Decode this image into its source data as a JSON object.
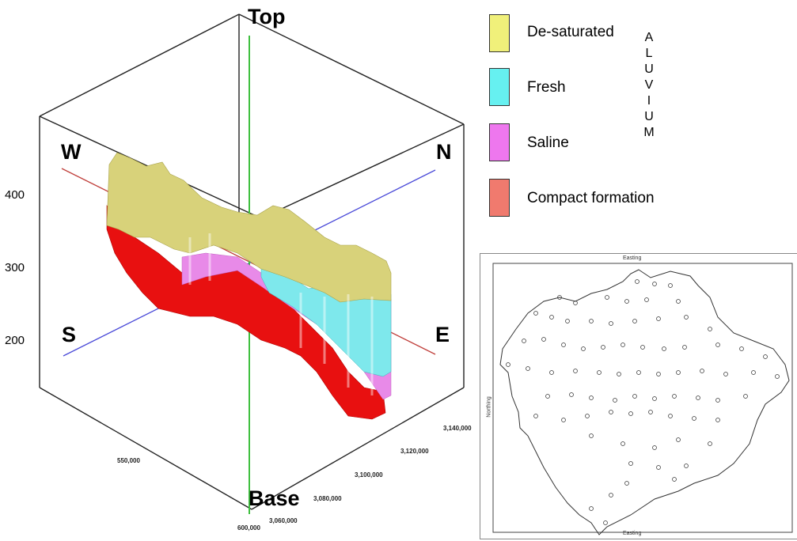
{
  "block": {
    "top_label": "Top",
    "base_label": "Base",
    "compass": {
      "w": "W",
      "n": "N",
      "s": "S",
      "e": "E"
    },
    "y_ticks": [
      "400",
      "300",
      "200"
    ],
    "easting_ticks": [
      "550,000",
      "600,000"
    ],
    "northing_ticks": [
      "3,140,000",
      "3,120,000",
      "3,100,000",
      "3,080,000",
      "3,060,000"
    ]
  },
  "legend": {
    "items": [
      {
        "label": "De-saturated",
        "color": "#f0f07a"
      },
      {
        "label": "Fresh",
        "color": "#66f0f0"
      },
      {
        "label": "Saline",
        "color": "#ee77ee"
      },
      {
        "label": "Compact formation",
        "color": "#f07a6e"
      }
    ],
    "group_letters": [
      "A",
      "L",
      "U",
      "V",
      "I",
      "U",
      "M"
    ]
  },
  "map": {
    "top_label": "Easting",
    "side_label": "Northing",
    "bottom_label": "Easting"
  },
  "colors": {
    "yellow": "#d8d27a",
    "cyan": "#7ee8ec",
    "magenta": "#e88ae8",
    "red": "#e81010",
    "axis_red": "#c0403c",
    "axis_blue": "#4a4ad8",
    "axis_green": "#40c040"
  }
}
